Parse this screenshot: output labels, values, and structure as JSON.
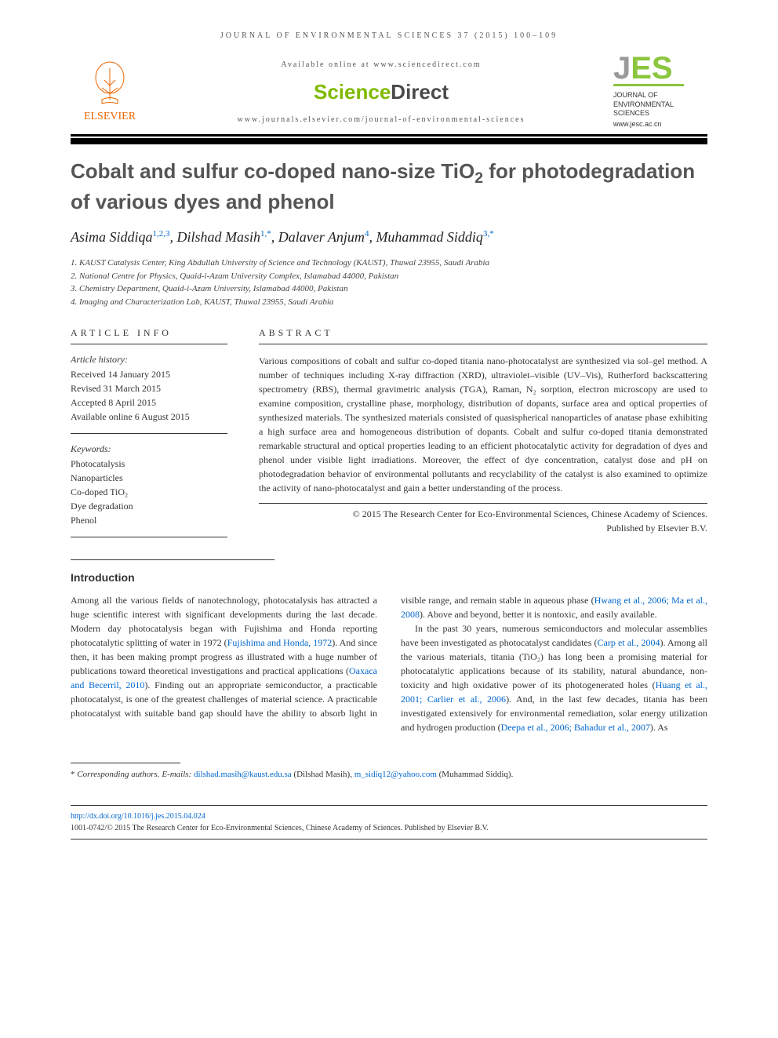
{
  "header": {
    "running_head": "JOURNAL OF ENVIRONMENTAL SCIENCES 37 (2015) 100–109",
    "available_online": "Available online at www.sciencedirect.com",
    "sciencedirect_science": "Science",
    "sciencedirect_direct": "Direct",
    "journal_url": "www.journals.elsevier.com/journal-of-environmental-sciences",
    "elsevier_label": "ELSEVIER",
    "jes_journal_of": "JOURNAL OF",
    "jes_environmental": "ENVIRONMENTAL",
    "jes_sciences": "SCIENCES",
    "jes_url": "www.jesc.ac.cn"
  },
  "colors": {
    "elsevier_orange": "#eb6500",
    "sd_green": "#7fba00",
    "sd_grey": "#4a4a4a",
    "jes_green": "#8cc63f",
    "link_blue": "#0066cc",
    "text_grey": "#555555",
    "black": "#000000"
  },
  "article": {
    "title_line1": "Cobalt and sulfur co-doped nano-size TiO",
    "title_sub": "2",
    "title_line2": " for photodegradation of various dyes and phenol",
    "authors_html": "Asima Siddiqa<sup>1,2,3</sup>, Dilshad Masih<sup>1,*</sup>, Dalaver Anjum<sup>4</sup>, Muhammad Siddiq<sup>3,*</sup>",
    "affiliations": [
      "1. KAUST Catalysis Center, King Abdullah University of Science and Technology (KAUST), Thuwal 23955, Saudi Arabia",
      "2. National Centre for Physics, Quaid-i-Azam University Complex, Islamabad 44000, Pakistan",
      "3. Chemistry Department, Quaid-i-Azam University, Islamabad 44000, Pakistan",
      "4. Imaging and Characterization Lab, KAUST, Thuwal 23955, Saudi Arabia"
    ]
  },
  "article_info": {
    "label": "ARTICLE INFO",
    "history_label": "Article history:",
    "history": [
      "Received 14 January 2015",
      "Revised 31 March 2015",
      "Accepted 8 April 2015",
      "Available online 6 August 2015"
    ],
    "keywords_label": "Keywords:",
    "keywords": [
      "Photocatalysis",
      "Nanoparticles",
      "Co-doped TiO₂",
      "Dye degradation",
      "Phenol"
    ]
  },
  "abstract": {
    "label": "ABSTRACT",
    "text": "Various compositions of cobalt and sulfur co-doped titania nano-photocatalyst are synthesized via sol–gel method. A number of techniques including X-ray diffraction (XRD), ultraviolet–visible (UV–Vis), Rutherford backscattering spectrometry (RBS), thermal gravimetric analysis (TGA), Raman, N₂ sorption, electron microscopy are used to examine composition, crystalline phase, morphology, distribution of dopants, surface area and optical properties of synthesized materials. The synthesized materials consisted of quasispherical nanoparticles of anatase phase exhibiting a high surface area and homogeneous distribution of dopants. Cobalt and sulfur co-doped titania demonstrated remarkable structural and optical properties leading to an efficient photocatalytic activity for degradation of dyes and phenol under visible light irradiations. Moreover, the effect of dye concentration, catalyst dose and pH on photodegradation behavior of environmental pollutants and recyclability of the catalyst is also examined to optimize the activity of nano-photocatalyst and gain a better understanding of the process.",
    "copyright1": "© 2015 The Research Center for Eco-Environmental Sciences, Chinese Academy of Sciences.",
    "copyright2": "Published by Elsevier B.V."
  },
  "intro": {
    "heading": "Introduction",
    "para1_a": "Among all the various fields of nanotechnology, photocatalysis has attracted a huge scientific interest with significant developments during the last decade. Modern day photocatalysis began with Fujishima and Honda reporting photocatalytic splitting of water in 1972 (",
    "ref1": "Fujishima and Honda, 1972",
    "para1_b": "). And since then, it has been making prompt progress as illustrated with a huge number of publications toward theoretical investigations and practical applications (",
    "ref2": "Oaxaca and Becerril, 2010",
    "para1_c": "). Finding out an appropriate semiconductor, a practicable photocatalyst, is one of the greatest challenges of material science. A practicable photocatalyst with suitable band gap should have the ability to absorb light in visible range, and remain stable in aqueous phase (",
    "ref3": "Hwang et al., 2006; Ma et al., 2008",
    "para1_d": "). Above and beyond, better it is nontoxic, and easily available.",
    "para2_a": "In the past 30 years, numerous semiconductors and molecular assemblies have been investigated as photocatalyst candidates (",
    "ref4": "Carp et al., 2004",
    "para2_b": "). Among all the various materials, titania (TiO₂) has long been a promising material for photocatalytic applications because of its stability, natural abundance, non-toxicity and high oxidative power of its photogenerated holes (",
    "ref5": "Huang et al., 2001; Carlier et al., 2006",
    "para2_c": "). And, in the last few decades, titania has been investigated extensively for environmental remediation, solar energy utilization and hydrogen production (",
    "ref6": "Deepa et al., 2006; Bahadur et al., 2007",
    "para2_d": "). As"
  },
  "footnote": {
    "star": "*",
    "label": " Corresponding authors. E-mails: ",
    "email1": "dilshad.masih@kaust.edu.sa",
    "name1": " (Dilshad Masih), ",
    "email2": "m_sidiq12@yahoo.com",
    "name2": " (Muhammad Siddiq)."
  },
  "doi": {
    "url": "http://dx.doi.org/10.1016/j.jes.2015.04.024",
    "issn_line": "1001-0742/© 2015 The Research Center for Eco-Environmental Sciences, Chinese Academy of Sciences. Published by Elsevier B.V."
  }
}
